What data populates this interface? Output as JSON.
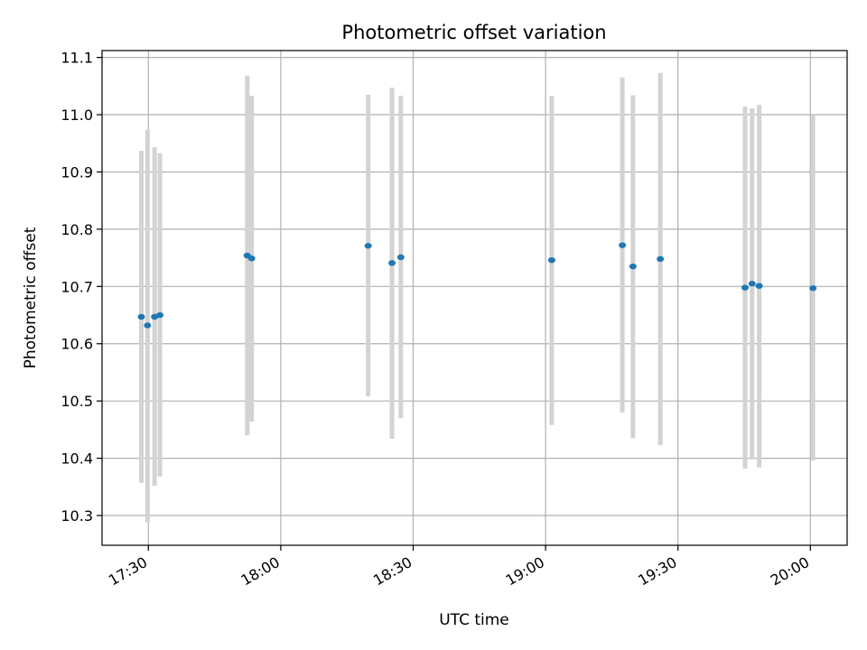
{
  "chart_data": {
    "type": "scatter",
    "title": "Photometric offset variation",
    "xlabel": "UTC time",
    "ylabel": "Photometric offset",
    "grid": true,
    "legend": "none",
    "xlim": [
      "17:19:30",
      "20:08:20"
    ],
    "ylim": [
      10.248,
      11.112
    ],
    "x_ticks": [
      "17:30",
      "18:00",
      "18:30",
      "19:00",
      "19:30",
      "20:00"
    ],
    "y_ticks": [
      "10.3",
      "10.4",
      "10.5",
      "10.6",
      "10.7",
      "10.8",
      "10.9",
      "11.0",
      "11.1"
    ],
    "colors": {
      "points": "#1f77b4",
      "error_bars": "#d3d3d3",
      "grid": "#b0b0b0"
    },
    "series": [
      {
        "points": [
          {
            "x": "17:28:24",
            "y": 10.647,
            "ymin": 10.357,
            "ymax": 10.937
          },
          {
            "x": "17:29:48",
            "y": 10.632,
            "ymin": 10.288,
            "ymax": 10.974
          },
          {
            "x": "17:31:24",
            "y": 10.647,
            "ymin": 10.352,
            "ymax": 10.943
          },
          {
            "x": "17:32:36",
            "y": 10.65,
            "ymin": 10.368,
            "ymax": 10.933
          },
          {
            "x": "17:52:24",
            "y": 10.754,
            "ymin": 10.44,
            "ymax": 11.068
          },
          {
            "x": "17:53:24",
            "y": 10.749,
            "ymin": 10.464,
            "ymax": 11.033
          },
          {
            "x": "18:19:48",
            "y": 10.771,
            "ymin": 10.508,
            "ymax": 11.035
          },
          {
            "x": "18:25:12",
            "y": 10.741,
            "ymin": 10.434,
            "ymax": 11.047
          },
          {
            "x": "18:27:12",
            "y": 10.751,
            "ymin": 10.47,
            "ymax": 11.033
          },
          {
            "x": "19:01:24",
            "y": 10.746,
            "ymin": 10.458,
            "ymax": 11.033
          },
          {
            "x": "19:17:24",
            "y": 10.772,
            "ymin": 10.48,
            "ymax": 11.065
          },
          {
            "x": "19:19:48",
            "y": 10.735,
            "ymin": 10.435,
            "ymax": 11.034
          },
          {
            "x": "19:26:00",
            "y": 10.748,
            "ymin": 10.423,
            "ymax": 11.073
          },
          {
            "x": "19:45:12",
            "y": 10.698,
            "ymin": 10.382,
            "ymax": 11.014
          },
          {
            "x": "19:46:48",
            "y": 10.705,
            "ymin": 10.398,
            "ymax": 11.011
          },
          {
            "x": "19:48:24",
            "y": 10.701,
            "ymin": 10.384,
            "ymax": 11.017
          },
          {
            "x": "20:00:36",
            "y": 10.697,
            "ymin": 10.396,
            "ymax": 11.0
          }
        ]
      }
    ]
  }
}
